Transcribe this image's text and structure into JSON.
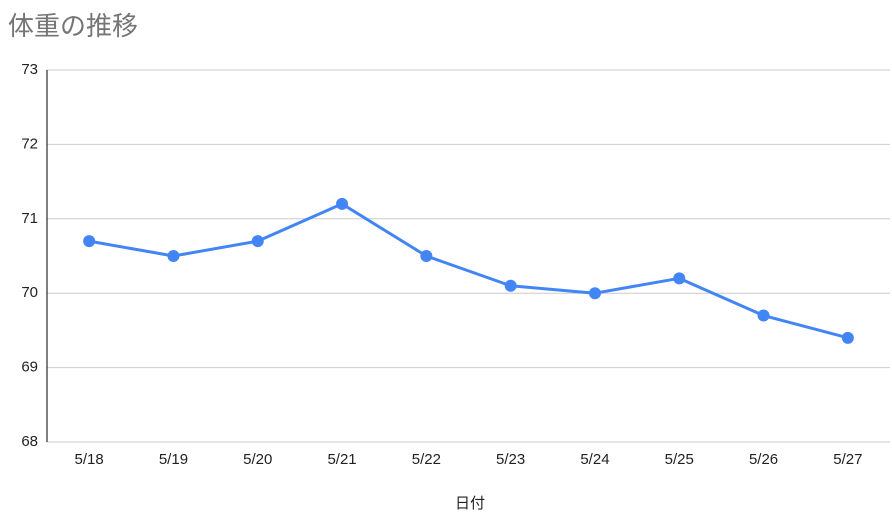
{
  "chart_data": {
    "type": "line",
    "title": "体重の推移",
    "x_label": "日付",
    "categories": [
      "5/18",
      "5/19",
      "5/20",
      "5/21",
      "5/22",
      "5/23",
      "5/24",
      "5/25",
      "5/26",
      "5/27"
    ],
    "series": [
      {
        "name": "体重",
        "color": "#4285f4",
        "values": [
          70.7,
          70.5,
          70.7,
          71.2,
          70.5,
          70.1,
          70.0,
          70.2,
          69.7,
          69.4
        ]
      }
    ],
    "ylim": [
      68,
      73
    ],
    "yticks": [
      68,
      69,
      70,
      71,
      72,
      73
    ],
    "grid": true
  }
}
